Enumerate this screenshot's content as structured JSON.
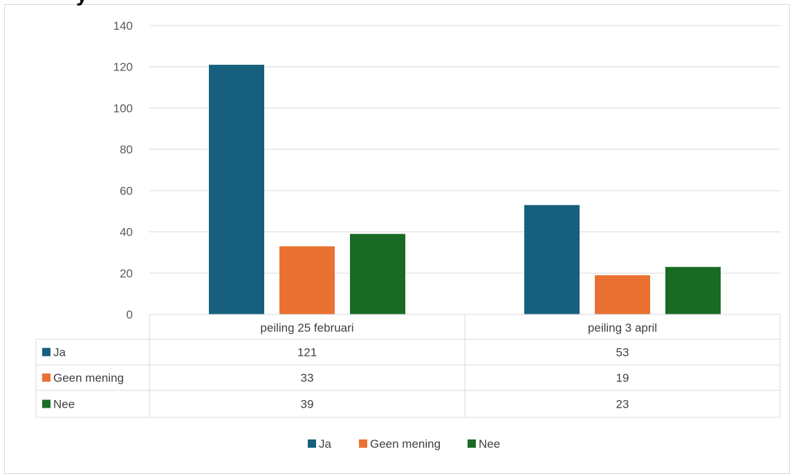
{
  "colors": {
    "Ja": "#17607d",
    "Geen mening": "#e97132",
    "Nee": "#196b24"
  },
  "chart_data": {
    "type": "bar",
    "categories": [
      "peiling 25 februari",
      "peiling 3 april"
    ],
    "series": [
      {
        "name": "Ja",
        "values": [
          121,
          53
        ]
      },
      {
        "name": "Geen mening",
        "values": [
          33,
          19
        ]
      },
      {
        "name": "Nee",
        "values": [
          39,
          23
        ]
      }
    ],
    "ylim": [
      0,
      140
    ],
    "yticks": [
      0,
      20,
      40,
      60,
      80,
      100,
      120,
      140
    ],
    "grid": true,
    "data_table": true,
    "legend": "bottom"
  }
}
